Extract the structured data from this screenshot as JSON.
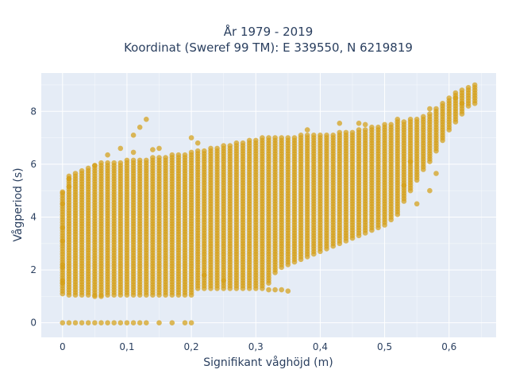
{
  "chart_data": {
    "type": "scatter",
    "title": [
      "År 1979 - 2019",
      "Koordinat (Sweref 99 TM): E 339550, N 6219819"
    ],
    "xlabel": "Signifikant våghöjd (m)",
    "ylabel": "Vågperiod (s)",
    "xlim": [
      -0.033,
      0.673
    ],
    "ylim": [
      -0.55,
      9.45
    ],
    "x_ticks": [
      0,
      0.1,
      0.2,
      0.3,
      0.4,
      0.5,
      0.6
    ],
    "x_tick_labels": [
      "0",
      "0,1",
      "0,2",
      "0,3",
      "0,4",
      "0,5",
      "0,6"
    ],
    "y_ticks": [
      0,
      2,
      4,
      6,
      8
    ],
    "y_tick_labels": [
      "0",
      "2",
      "4",
      "6",
      "8"
    ],
    "grid": true,
    "legend": "none",
    "colors": {
      "marker": "#d4a017",
      "plot_bg": "#e5ecf6",
      "grid": "#ffffff",
      "text": "#2a3f5f"
    },
    "series": [
      {
        "x_step": 0.01,
        "columns": [
          [
            0.0,
            1.1,
            4.9
          ],
          [
            0.01,
            1.05,
            5.6
          ],
          [
            0.02,
            1.05,
            5.7
          ],
          [
            0.03,
            1.05,
            5.8
          ],
          [
            0.04,
            1.05,
            5.85
          ],
          [
            0.05,
            1.05,
            5.95
          ],
          [
            0.06,
            1.05,
            6.1
          ],
          [
            0.07,
            1.05,
            6.05
          ],
          [
            0.08,
            1.05,
            6.1
          ],
          [
            0.09,
            1.05,
            6.1
          ],
          [
            0.1,
            1.05,
            6.2
          ],
          [
            0.11,
            1.05,
            6.2
          ],
          [
            0.12,
            1.05,
            6.15
          ],
          [
            0.13,
            1.05,
            6.2
          ],
          [
            0.14,
            1.05,
            6.25
          ],
          [
            0.15,
            1.05,
            6.3
          ],
          [
            0.16,
            1.05,
            6.3
          ],
          [
            0.17,
            1.05,
            6.35
          ],
          [
            0.18,
            1.05,
            6.4
          ],
          [
            0.19,
            1.05,
            6.4
          ],
          [
            0.2,
            1.05,
            6.45
          ],
          [
            0.21,
            1.3,
            6.5
          ],
          [
            0.22,
            1.3,
            6.55
          ],
          [
            0.23,
            1.3,
            6.6
          ],
          [
            0.24,
            1.3,
            6.6
          ],
          [
            0.25,
            1.3,
            6.7
          ],
          [
            0.26,
            1.3,
            6.75
          ],
          [
            0.27,
            1.3,
            6.8
          ],
          [
            0.28,
            1.3,
            6.85
          ],
          [
            0.29,
            1.3,
            6.9
          ],
          [
            0.3,
            1.3,
            6.95
          ],
          [
            0.31,
            1.3,
            7.0
          ],
          [
            0.32,
            1.5,
            7.0
          ],
          [
            0.33,
            1.9,
            7.0
          ],
          [
            0.34,
            2.1,
            7.05
          ],
          [
            0.35,
            2.2,
            7.05
          ],
          [
            0.36,
            2.3,
            7.05
          ],
          [
            0.37,
            2.4,
            7.1
          ],
          [
            0.38,
            2.5,
            7.1
          ],
          [
            0.39,
            2.6,
            7.1
          ],
          [
            0.4,
            2.7,
            7.15
          ],
          [
            0.41,
            2.8,
            7.15
          ],
          [
            0.42,
            2.9,
            7.15
          ],
          [
            0.43,
            3.0,
            7.2
          ],
          [
            0.44,
            3.1,
            7.2
          ],
          [
            0.45,
            3.2,
            7.25
          ],
          [
            0.46,
            3.3,
            7.3
          ],
          [
            0.47,
            3.4,
            7.35
          ],
          [
            0.48,
            3.5,
            7.4
          ],
          [
            0.49,
            3.6,
            7.45
          ],
          [
            0.5,
            3.7,
            7.5
          ],
          [
            0.51,
            3.9,
            7.55
          ],
          [
            0.52,
            4.1,
            7.6
          ],
          [
            0.53,
            4.6,
            7.65
          ],
          [
            0.54,
            5.0,
            7.7
          ],
          [
            0.55,
            5.4,
            7.75
          ],
          [
            0.56,
            5.8,
            7.8
          ],
          [
            0.57,
            6.1,
            7.9
          ],
          [
            0.58,
            6.5,
            8.1
          ],
          [
            0.59,
            6.9,
            8.3
          ],
          [
            0.6,
            7.3,
            8.5
          ],
          [
            0.61,
            7.6,
            8.7
          ],
          [
            0.62,
            7.9,
            8.8
          ],
          [
            0.63,
            8.2,
            8.9
          ],
          [
            0.64,
            8.4,
            9.0
          ]
        ],
        "zero_period_points": [
          0,
          0.01,
          0.02,
          0.03,
          0.04,
          0.05,
          0.06,
          0.07,
          0.08,
          0.09,
          0.1,
          0.11,
          0.12,
          0.13,
          0.15,
          0.17,
          0.19,
          0.2
        ],
        "outliers": [
          [
            0.0,
            1.5
          ],
          [
            0.0,
            1.6
          ],
          [
            0.0,
            2.1
          ],
          [
            0.0,
            2.2
          ],
          [
            0.0,
            3.1
          ],
          [
            0.0,
            3.6
          ],
          [
            0.0,
            4.5
          ],
          [
            0.0,
            4.95
          ],
          [
            0.01,
            5.15
          ],
          [
            0.01,
            5.45
          ],
          [
            0.05,
            5.95
          ],
          [
            0.07,
            6.35
          ],
          [
            0.09,
            6.6
          ],
          [
            0.11,
            7.1
          ],
          [
            0.12,
            7.4
          ],
          [
            0.13,
            7.7
          ],
          [
            0.11,
            6.45
          ],
          [
            0.14,
            6.55
          ],
          [
            0.15,
            6.6
          ],
          [
            0.2,
            7.0
          ],
          [
            0.21,
            6.8
          ],
          [
            0.35,
            1.2
          ],
          [
            0.34,
            1.25
          ],
          [
            0.33,
            1.25
          ],
          [
            0.32,
            1.25
          ],
          [
            0.25,
            1.6
          ],
          [
            0.22,
            1.8
          ],
          [
            0.38,
            7.3
          ],
          [
            0.43,
            7.55
          ],
          [
            0.46,
            7.55
          ],
          [
            0.47,
            7.5
          ],
          [
            0.52,
            7.7
          ],
          [
            0.58,
            5.65
          ],
          [
            0.57,
            5.0
          ],
          [
            0.55,
            4.5
          ],
          [
            0.54,
            6.1
          ],
          [
            0.53,
            5.2
          ],
          [
            0.57,
            8.1
          ],
          [
            0.61,
            8.5
          ],
          [
            0.62,
            8.3
          ],
          [
            0.64,
            8.3
          ],
          [
            0.05,
            1.0
          ],
          [
            0.06,
            1.0
          ]
        ]
      }
    ]
  }
}
